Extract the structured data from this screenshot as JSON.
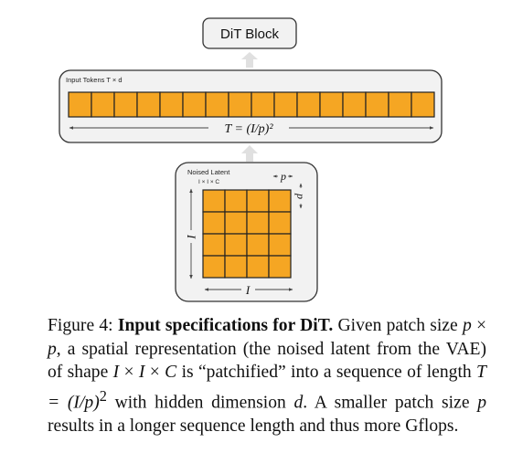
{
  "diagram": {
    "block_label": "DiT Block",
    "tokens_label": "Input Tokens T × d",
    "tokens_count": 16,
    "seq_length_formula": "T = (I/p)²",
    "latent_title": "Noised Latent",
    "latent_dims": "I × I × C",
    "grid_size": 4,
    "side_label": "I",
    "bottom_label": "I",
    "patch_label_top": "p",
    "patch_label_right": "p",
    "colors": {
      "patch_fill": "#f5a623",
      "panel_fill": "#f2f2f2",
      "arrow_fill": "#e0e0e0"
    }
  },
  "caption": {
    "figure_label": "Figure 4:",
    "title": "Input specifications for DiT.",
    "text_1": "Given patch size",
    "p1": "p",
    "times1": " × ",
    "p2": "p",
    "text_2": ", a spatial representation (the noised latent from the VAE) of shape",
    "I1": "I",
    "times2": " × ",
    "I2": "I",
    "times3": " × ",
    "C": "C",
    "text_3": "is “patchified” into a sequence of length",
    "formula": "T = (I/p)",
    "sup": "2",
    "text_4": "with hidden dimension",
    "d": "d",
    "text_5": ". A smaller patch size",
    "p3": "p",
    "text_6": "results in a longer sequence length and thus more Gflops."
  }
}
